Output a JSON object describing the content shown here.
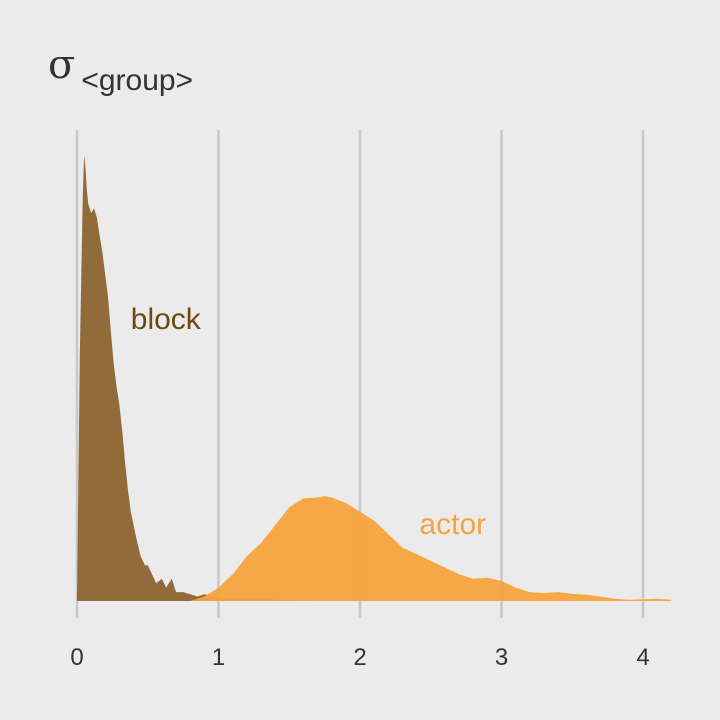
{
  "chart_data": {
    "type": "area",
    "title": {
      "symbol": "σ",
      "subscript": "<group>"
    },
    "xlabel": "",
    "ylabel": "",
    "xlim": [
      0,
      4.2
    ],
    "ylim": [
      0,
      1
    ],
    "grid": "vertical major gridlines only",
    "legend": "none (direct labels on curves)",
    "x_ticks": [
      0,
      1,
      2,
      3,
      4
    ],
    "x_tick_labels": [
      "0",
      "1",
      "2",
      "3",
      "4"
    ],
    "series": [
      {
        "name": "block",
        "color": "#8c6530",
        "label_color": "#6b4a10",
        "label_at": [
          0.38,
          0.61
        ],
        "points": [
          [
            0.0,
            0.0
          ],
          [
            0.02,
            0.55
          ],
          [
            0.04,
            0.9
          ],
          [
            0.05,
            1.0
          ],
          [
            0.06,
            0.97
          ],
          [
            0.07,
            0.92
          ],
          [
            0.08,
            0.89
          ],
          [
            0.1,
            0.87
          ],
          [
            0.12,
            0.88
          ],
          [
            0.14,
            0.86
          ],
          [
            0.16,
            0.82
          ],
          [
            0.18,
            0.78
          ],
          [
            0.2,
            0.73
          ],
          [
            0.22,
            0.68
          ],
          [
            0.24,
            0.6
          ],
          [
            0.26,
            0.53
          ],
          [
            0.28,
            0.48
          ],
          [
            0.3,
            0.44
          ],
          [
            0.32,
            0.38
          ],
          [
            0.34,
            0.31
          ],
          [
            0.36,
            0.25
          ],
          [
            0.38,
            0.2
          ],
          [
            0.4,
            0.17
          ],
          [
            0.42,
            0.14
          ],
          [
            0.45,
            0.1
          ],
          [
            0.48,
            0.08
          ],
          [
            0.5,
            0.08
          ],
          [
            0.53,
            0.06
          ],
          [
            0.56,
            0.04
          ],
          [
            0.6,
            0.05
          ],
          [
            0.63,
            0.03
          ],
          [
            0.67,
            0.05
          ],
          [
            0.7,
            0.02
          ],
          [
            0.75,
            0.02
          ],
          [
            0.8,
            0.015
          ],
          [
            0.85,
            0.01
          ],
          [
            0.9,
            0.015
          ],
          [
            1.0,
            0.008
          ],
          [
            1.1,
            0.005
          ],
          [
            1.25,
            0.004
          ],
          [
            1.3,
            0.006
          ],
          [
            1.4,
            0.003
          ],
          [
            1.6,
            0.002
          ],
          [
            1.8,
            0.001
          ],
          [
            2.0,
            0.0
          ]
        ]
      },
      {
        "name": "actor",
        "color": "#f5a43c",
        "label_color": "#f5a43c",
        "label_at": [
          2.42,
          0.15
        ],
        "points": [
          [
            0.8,
            0.0
          ],
          [
            0.9,
            0.01
          ],
          [
            1.0,
            0.03
          ],
          [
            1.1,
            0.06
          ],
          [
            1.2,
            0.1
          ],
          [
            1.3,
            0.13
          ],
          [
            1.4,
            0.17
          ],
          [
            1.5,
            0.21
          ],
          [
            1.6,
            0.23
          ],
          [
            1.7,
            0.232
          ],
          [
            1.75,
            0.235
          ],
          [
            1.8,
            0.232
          ],
          [
            1.9,
            0.22
          ],
          [
            2.0,
            0.2
          ],
          [
            2.1,
            0.18
          ],
          [
            2.2,
            0.15
          ],
          [
            2.3,
            0.12
          ],
          [
            2.4,
            0.105
          ],
          [
            2.5,
            0.09
          ],
          [
            2.6,
            0.075
          ],
          [
            2.7,
            0.06
          ],
          [
            2.8,
            0.05
          ],
          [
            2.9,
            0.052
          ],
          [
            3.0,
            0.045
          ],
          [
            3.1,
            0.03
          ],
          [
            3.2,
            0.02
          ],
          [
            3.3,
            0.018
          ],
          [
            3.4,
            0.02
          ],
          [
            3.5,
            0.016
          ],
          [
            3.6,
            0.014
          ],
          [
            3.7,
            0.01
          ],
          [
            3.8,
            0.005
          ],
          [
            3.9,
            0.003
          ],
          [
            4.0,
            0.004
          ],
          [
            4.1,
            0.005
          ],
          [
            4.2,
            0.003
          ]
        ]
      }
    ]
  }
}
